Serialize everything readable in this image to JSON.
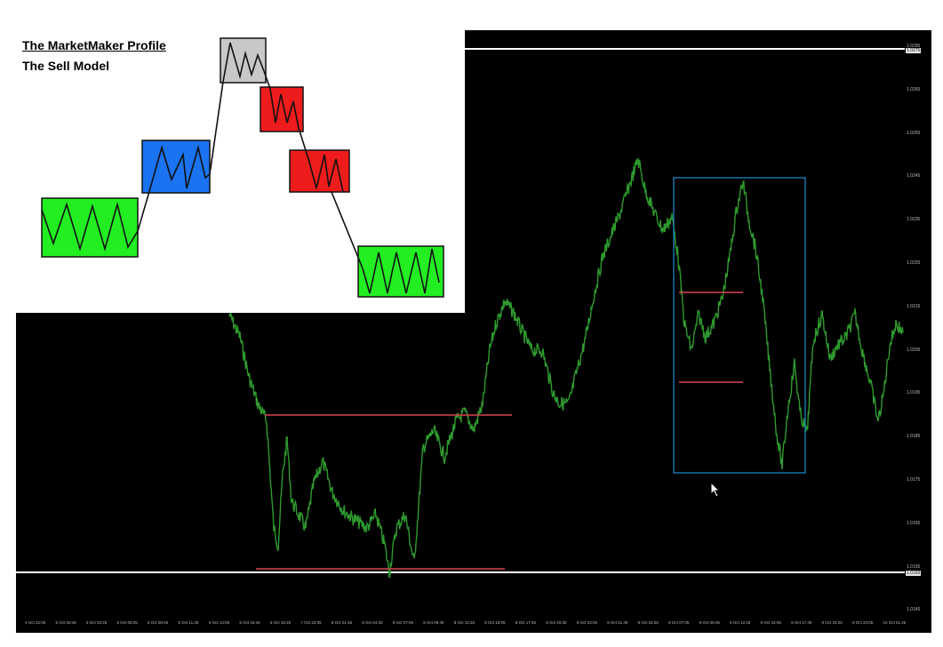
{
  "model": {
    "title": "The MarketMaker Profile",
    "subtitle": "The Sell Model",
    "box_colors": {
      "accumulation": "#22ee22",
      "markup": "#1a73f0",
      "top": "#c8c8c8",
      "markdown": "#ee1c1c",
      "distribution": "#22ee22"
    }
  },
  "chart": {
    "background": "#000000",
    "price_color": "#2e9a2e",
    "level_color": "#d9434e",
    "box_color": "#1e8fd0",
    "hline_color": "#ffffff",
    "price_ticks": [
      "1.0295",
      "1.0265",
      "1.0255",
      "1.0245",
      "1.0235",
      "1.0225",
      "1.0215",
      "1.0205",
      "1.0195",
      "1.0185",
      "1.0175",
      "1.0165",
      "1.0155",
      "1.0145"
    ],
    "price_marker_top": "1.0275",
    "price_marker_bottom": "1.0150",
    "time_ticks": [
      "4 Oct 22:05",
      "5 Oct 00:45",
      "5 Oct 03:25",
      "5 Oct 06:05",
      "5 Oct 08:45",
      "5 Oct 11:25",
      "5 Oct 14:05",
      "5 Oct 16:45",
      "5 Oct 19:25",
      "7 Oct 22:05",
      "8 Oct 01:45",
      "8 Oct 04:25",
      "8 Oct 07:05",
      "8 Oct 09:45",
      "8 Oct 12:25",
      "8 Oct 15:05",
      "8 Oct 17:45",
      "8 Oct 20:25",
      "8 Oct 23:05",
      "9 Oct 01:45",
      "9 Oct 04:25",
      "9 Oct 07:05",
      "9 Oct 09:45",
      "9 Oct 12:25",
      "9 Oct 15:05",
      "9 Oct 17:45",
      "9 Oct 20:25",
      "9 Oct 23:05",
      "10 Oct 01:45"
    ]
  }
}
